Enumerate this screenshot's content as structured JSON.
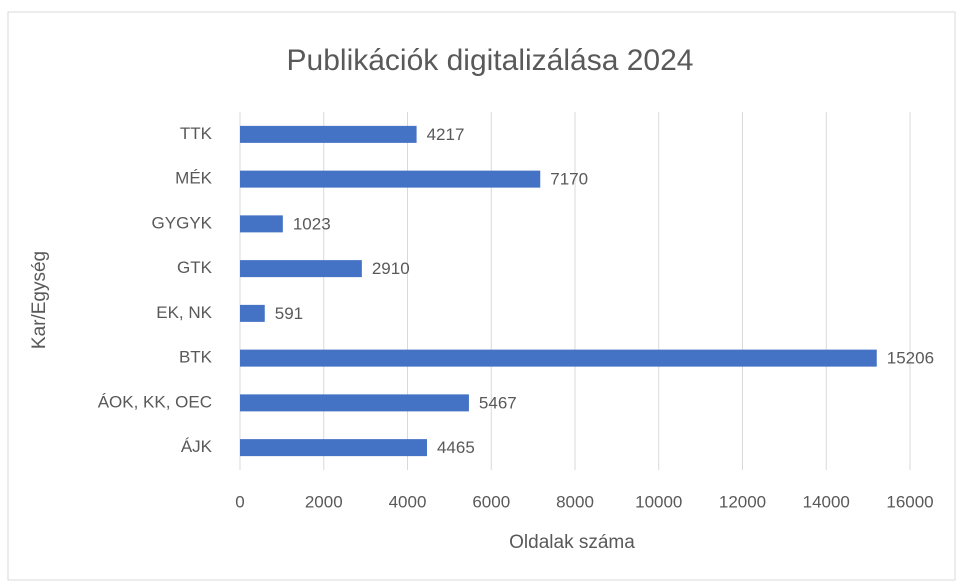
{
  "chart_data": {
    "type": "hbar",
    "title": "Publikációk digitalizálása 2024",
    "xlabel": "Oldalak száma",
    "ylabel": "Kar/Egység",
    "categories": [
      "TTK",
      "MÉK",
      "GYGYK",
      "GTK",
      "EK, NK",
      "BTK",
      "ÁOK, KK, OEC",
      "ÁJK"
    ],
    "values": [
      4217,
      7170,
      1023,
      2910,
      591,
      15206,
      5467,
      4465
    ],
    "color": "#4472c4",
    "xlim": [
      0,
      16000
    ],
    "xticks": [
      0,
      2000,
      4000,
      6000,
      8000,
      10000,
      12000,
      14000,
      16000
    ],
    "grid": true
  }
}
